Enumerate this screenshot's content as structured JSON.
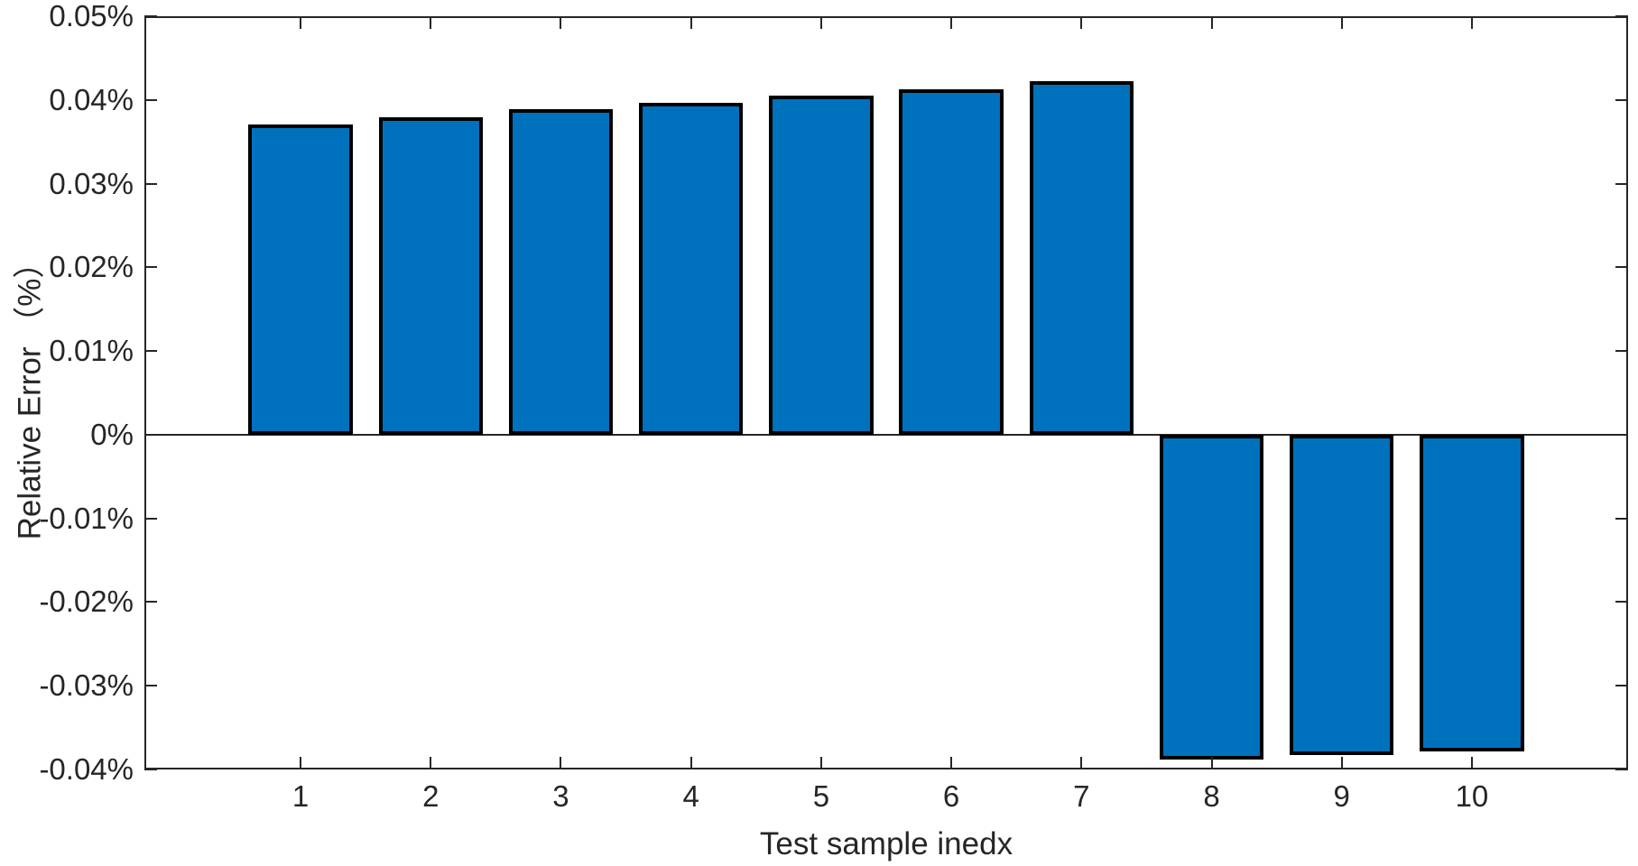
{
  "chart_data": {
    "type": "bar",
    "xlabel": "Test sample inedx",
    "ylabel": "Relative Error （%）",
    "categories": [
      1,
      2,
      3,
      4,
      5,
      6,
      7,
      8,
      9,
      10
    ],
    "values": [
      0.0371,
      0.0379,
      0.0389,
      0.0397,
      0.0405,
      0.0413,
      0.0422,
      -0.0388,
      -0.0383,
      -0.0378
    ],
    "values_unit": "percent",
    "series_name": "Relative Error",
    "ylim": [
      -0.04,
      0.05
    ],
    "xlim": [
      -0.2,
      11.2
    ],
    "yticks": [
      {
        "value": 0.05,
        "label": "0.05%"
      },
      {
        "value": 0.04,
        "label": "0.04%"
      },
      {
        "value": 0.03,
        "label": "0.03%"
      },
      {
        "value": 0.02,
        "label": "0.02%"
      },
      {
        "value": 0.01,
        "label": "0.01%"
      },
      {
        "value": 0,
        "label": "0%"
      },
      {
        "value": -0.01,
        "label": "-0.01%"
      },
      {
        "value": -0.02,
        "label": "-0.02%"
      },
      {
        "value": -0.03,
        "label": "-0.03%"
      },
      {
        "value": -0.04,
        "label": "-0.04%"
      }
    ],
    "xticks": [
      {
        "value": 1,
        "label": "1"
      },
      {
        "value": 2,
        "label": "2"
      },
      {
        "value": 3,
        "label": "3"
      },
      {
        "value": 4,
        "label": "4"
      },
      {
        "value": 5,
        "label": "5"
      },
      {
        "value": 6,
        "label": "6"
      },
      {
        "value": 7,
        "label": "7"
      },
      {
        "value": 8,
        "label": "8"
      },
      {
        "value": 9,
        "label": "9"
      },
      {
        "value": 10,
        "label": "10"
      }
    ],
    "bar_width_units": 0.8,
    "grid": false,
    "legend_position": "none",
    "colors": {
      "bar_fill": "#0072BD",
      "bar_edge": "#000000",
      "axis": "#262626",
      "text": "#262626",
      "background": "#FFFFFF"
    }
  }
}
